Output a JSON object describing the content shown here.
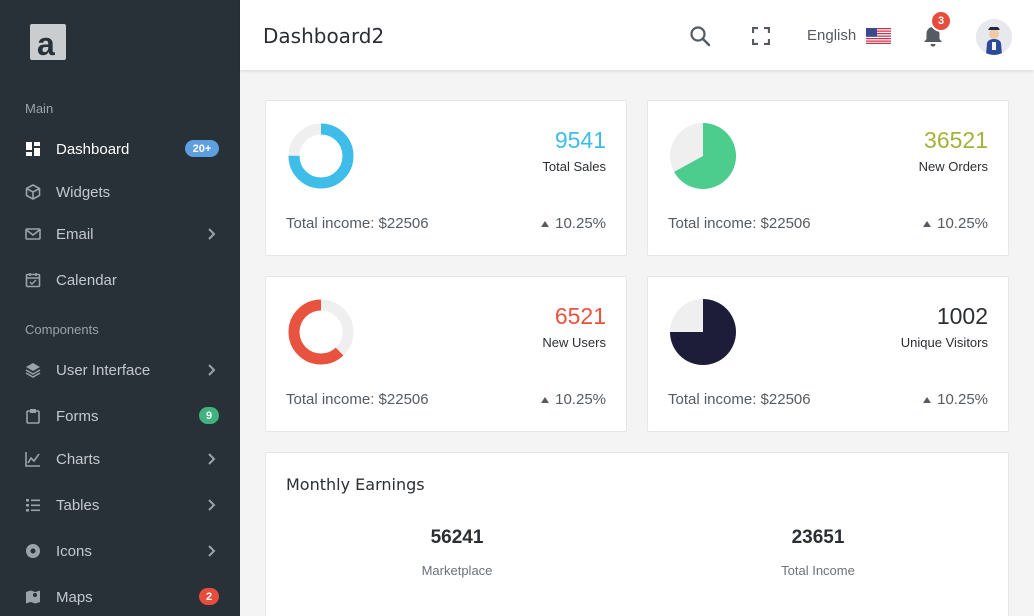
{
  "logo": {
    "letter": "a"
  },
  "sidebar": {
    "sections": [
      "Main",
      "Components"
    ],
    "items": [
      {
        "label": "Dashboard",
        "icon": "dashboard-icon",
        "badge": "20+"
      },
      {
        "label": "Widgets",
        "icon": "cube-icon"
      },
      {
        "label": "Email",
        "icon": "mail-icon"
      },
      {
        "label": "Calendar",
        "icon": "calendar-icon"
      },
      {
        "label": "User Interface",
        "icon": "layers-icon"
      },
      {
        "label": "Forms",
        "icon": "clipboard-icon",
        "badge": "9"
      },
      {
        "label": "Charts",
        "icon": "line-chart-icon"
      },
      {
        "label": "Tables",
        "icon": "list-icon"
      },
      {
        "label": "Icons",
        "icon": "disc-icon"
      },
      {
        "label": "Maps",
        "icon": "map-icon",
        "badge": "2"
      }
    ]
  },
  "header": {
    "title": "Dashboard2",
    "language": "English",
    "notification_count": "3"
  },
  "colors": {
    "sidebar_bg": "#293138",
    "blue": "#3dbde8",
    "green": "#4ccc8d",
    "red": "#e8533f",
    "navy": "#1d1d3a",
    "olive": "#a3b33a",
    "badge_blue": "#5e9fe0",
    "badge_green": "#3fb27e",
    "badge_red": "#e74c3c"
  },
  "stats": [
    {
      "value": "9541",
      "label": "Total Sales",
      "income": "Total income: $22506",
      "trend": "10.25%",
      "fraction": 0.75
    },
    {
      "value": "36521",
      "label": "New Orders",
      "income": "Total income: $22506",
      "trend": "10.25%",
      "fraction": 0.67
    },
    {
      "value": "6521",
      "label": "New Users",
      "income": "Total income: $22506",
      "trend": "10.25%",
      "fraction": 0.62
    },
    {
      "value": "1002",
      "label": "Unique Visitors",
      "income": "Total income: $22506",
      "trend": "10.25%",
      "fraction": 0.75
    }
  ],
  "earnings": {
    "title": "Monthly Earnings",
    "items": [
      {
        "value": "56241",
        "label": "Marketplace"
      },
      {
        "value": "23651",
        "label": "Total Income"
      }
    ]
  }
}
